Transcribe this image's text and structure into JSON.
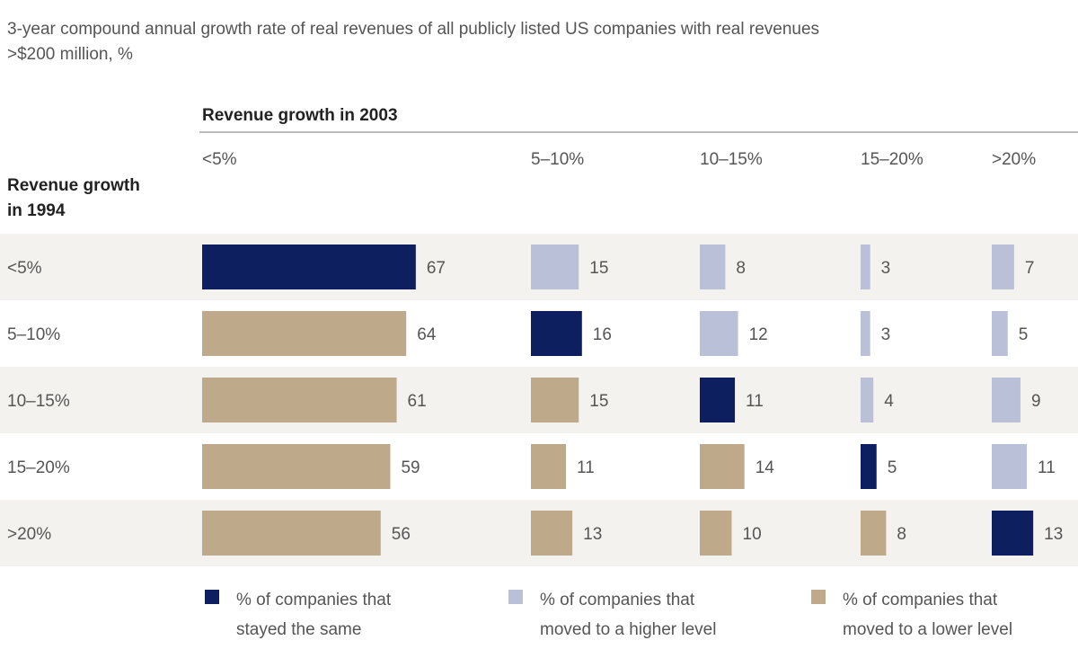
{
  "chart_data": {
    "type": "bar",
    "title": "3-year compound annual growth rate of real revenues of all publicly listed US companies with real revenues",
    "title_line2": ">$200 million, %",
    "column_header": "Revenue growth  in 2003",
    "row_header_line1": "Revenue growth",
    "row_header_line2": "in 1994",
    "columns": [
      "<5%",
      "5–10%",
      "10–15%",
      "15–20%",
      ">20%"
    ],
    "rows": [
      "<5%",
      "5–10%",
      "10–15%",
      "15–20%",
      ">20%"
    ],
    "values": [
      [
        67,
        15,
        8,
        3,
        7
      ],
      [
        64,
        16,
        12,
        3,
        5
      ],
      [
        61,
        15,
        11,
        4,
        9
      ],
      [
        59,
        11,
        14,
        5,
        11
      ],
      [
        56,
        13,
        10,
        8,
        13
      ]
    ],
    "legend": [
      {
        "key": "same",
        "line1": "% of companies that",
        "line2": "stayed the same",
        "color": "#0d1f5e"
      },
      {
        "key": "higher",
        "line1": "% of companies that",
        "line2": "moved to a higher level",
        "color": "#b9c0d8"
      },
      {
        "key": "lower",
        "line1": "% of companies that",
        "line2": "moved to a lower level",
        "color": "#bfa98b"
      }
    ],
    "legend_placement": "bottom",
    "grid": false
  }
}
